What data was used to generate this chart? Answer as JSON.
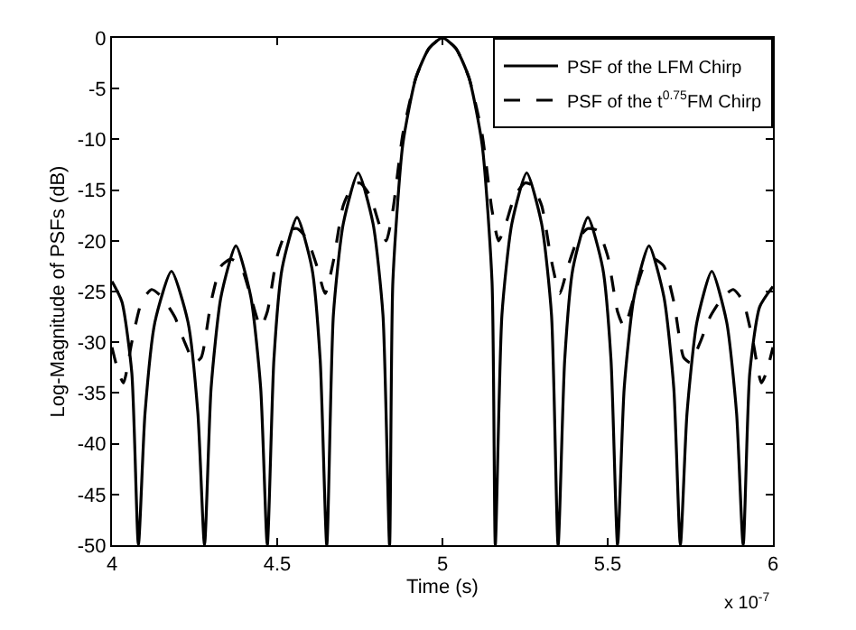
{
  "chart_data": {
    "type": "line",
    "xlabel": "Time (s)",
    "ylabel": "Log-Magnitude of PSFs (dB)",
    "xlim": [
      4,
      6
    ],
    "xticks": [
      4,
      4.5,
      5,
      5.5,
      6
    ],
    "ylim": [
      -50,
      0
    ],
    "yticks": [
      -50,
      -45,
      -40,
      -35,
      -30,
      -25,
      -20,
      -15,
      -10,
      -5,
      0
    ],
    "legend": "top right",
    "annotations": [
      "x 10$^{-7}$"
    ],
    "series": [
      {
        "name": "PSF of the LFM Chirp",
        "color": "#000000",
        "line_style": "solid",
        "x": [
          4.0,
          4.03,
          4.06,
          4.08,
          4.1,
          4.13,
          4.18,
          4.23,
          4.26,
          4.28,
          4.3,
          4.33,
          4.375,
          4.42,
          4.45,
          4.47,
          4.49,
          4.515,
          4.56,
          4.605,
          4.63,
          4.65,
          4.67,
          4.7,
          4.745,
          4.79,
          4.82,
          4.84,
          4.85,
          4.88,
          4.92,
          4.96,
          5.0,
          5.04,
          5.08,
          5.12,
          5.15,
          5.16,
          5.18,
          5.21,
          5.255,
          5.3,
          5.33,
          5.35,
          5.37,
          5.395,
          5.44,
          5.485,
          5.51,
          5.53,
          5.55,
          5.58,
          5.625,
          5.67,
          5.7,
          5.72,
          5.74,
          5.77,
          5.815,
          5.86,
          5.89,
          5.91,
          5.93,
          5.96,
          6.0
        ],
        "values": [
          -24,
          -26,
          -33,
          -50,
          -37,
          -28,
          -23,
          -28,
          -37,
          -50,
          -34.5,
          -25.5,
          -20.5,
          -25.5,
          -34.5,
          -50,
          -31.7,
          -22.7,
          -17.7,
          -22.7,
          -31.7,
          -50,
          -27.3,
          -18.3,
          -13.3,
          -18.3,
          -27.3,
          -50,
          -24,
          -10.5,
          -3.9,
          -1,
          0,
          -1,
          -3.9,
          -10.5,
          -24,
          -50,
          -27.3,
          -18.3,
          -13.3,
          -18.3,
          -27.3,
          -50,
          -31.7,
          -22.7,
          -17.7,
          -22.7,
          -31.7,
          -50,
          -34.5,
          -25.5,
          -20.5,
          -25.5,
          -34.5,
          -50,
          -37,
          -28,
          -23,
          -28,
          -37,
          -50,
          -33,
          -26.5,
          -24.5
        ]
      },
      {
        "name": "PSF of the t$^{0.75}$FM Chirp",
        "color": "#000000",
        "line_style": "dashed",
        "x": [
          4.0,
          4.02,
          4.035,
          4.06,
          4.09,
          4.12,
          4.15,
          4.19,
          4.22,
          4.25,
          4.27,
          4.3,
          4.33,
          4.36,
          4.39,
          4.42,
          4.45,
          4.47,
          4.5,
          4.53,
          4.56,
          4.59,
          4.62,
          4.645,
          4.67,
          4.7,
          4.73,
          4.75,
          4.78,
          4.81,
          4.83,
          4.85,
          4.88,
          4.92,
          4.96,
          5.0,
          5.04,
          5.08,
          5.12,
          5.15,
          5.17,
          5.19,
          5.22,
          5.25,
          5.27,
          5.3,
          5.33,
          5.355,
          5.38,
          5.41,
          5.44,
          5.47,
          5.5,
          5.53,
          5.55,
          5.58,
          5.61,
          5.64,
          5.67,
          5.7,
          5.73,
          5.75,
          5.78,
          5.81,
          5.85,
          5.88,
          5.91,
          5.94,
          5.965,
          5.98,
          6.0
        ],
        "values": [
          -30.5,
          -33,
          -34,
          -30,
          -26,
          -24.8,
          -25.5,
          -27.5,
          -30,
          -32,
          -31.5,
          -26,
          -22.5,
          -21.8,
          -22.5,
          -25.5,
          -28.5,
          -27,
          -21.5,
          -19,
          -18.8,
          -19.8,
          -22.5,
          -25.2,
          -22,
          -16.5,
          -14.5,
          -14.3,
          -15.5,
          -18.5,
          -20,
          -17,
          -9.5,
          -3.9,
          -1,
          0,
          -1,
          -3.9,
          -9.5,
          -17,
          -20,
          -18.5,
          -15.5,
          -14.3,
          -14.5,
          -16.5,
          -22,
          -25.2,
          -22.5,
          -19.8,
          -18.8,
          -19,
          -21.5,
          -27,
          -28.5,
          -25.5,
          -22.5,
          -21.8,
          -22.5,
          -26,
          -31.5,
          -32,
          -30,
          -27.5,
          -25.5,
          -24.8,
          -26,
          -30,
          -34,
          -33,
          -30.5
        ]
      }
    ]
  }
}
